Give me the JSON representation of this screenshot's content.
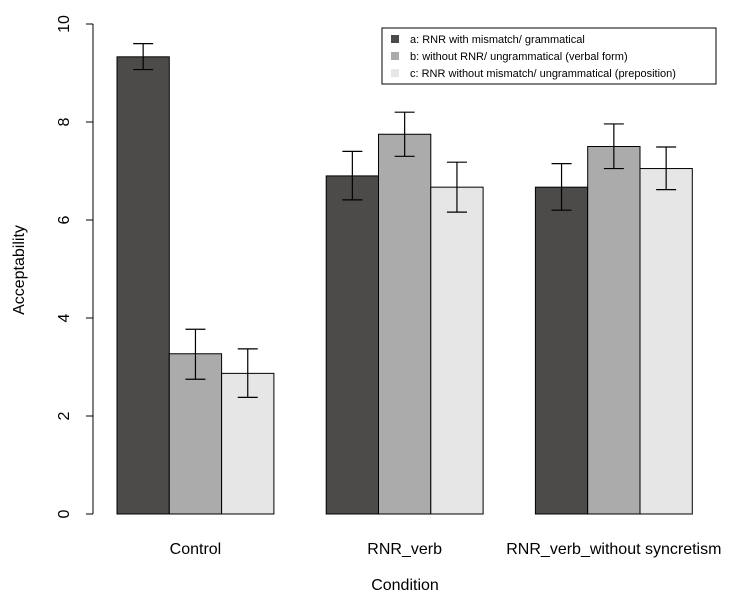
{
  "chart_data": {
    "type": "bar",
    "title": "",
    "xlabel": "Condition",
    "ylabel": "Acceptability",
    "categories": [
      "Control",
      "RNR_verb",
      "RNR_verb_without syncretism"
    ],
    "ylim": [
      0,
      10
    ],
    "yticks": [
      0,
      2,
      4,
      6,
      8,
      10
    ],
    "grid": false,
    "legend_position": "top-right",
    "series": [
      {
        "name": "a: RNR with mismatch/ grammatical",
        "color": "#4d4b49",
        "values": [
          9.33,
          6.9,
          6.67
        ],
        "error_low": [
          9.07,
          6.41,
          6.2
        ],
        "error_high": [
          9.6,
          7.4,
          7.15
        ]
      },
      {
        "name": "b: without RNR/ ungrammatical (verbal form)",
        "color": "#ababab",
        "values": [
          3.27,
          7.75,
          7.5
        ],
        "error_low": [
          2.75,
          7.3,
          7.05
        ],
        "error_high": [
          3.77,
          8.2,
          7.96
        ]
      },
      {
        "name": "c: RNR without mismatch/ ungrammatical (preposition)",
        "color": "#e6e6e6",
        "values": [
          2.87,
          6.67,
          7.05
        ],
        "error_low": [
          2.38,
          6.16,
          6.62
        ],
        "error_high": [
          3.37,
          7.18,
          7.49
        ]
      }
    ]
  }
}
